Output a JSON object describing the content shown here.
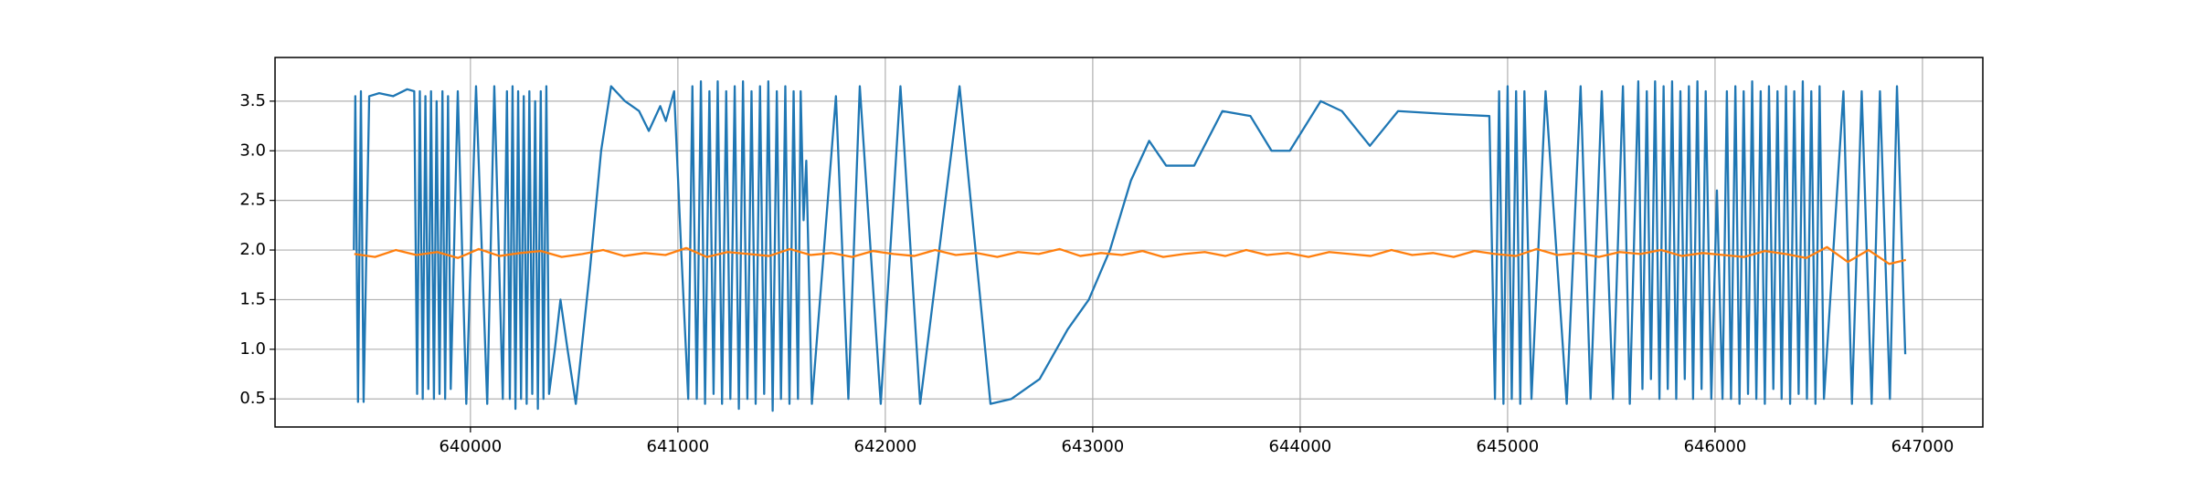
{
  "chart_data": {
    "type": "line",
    "xlim": [
      639058,
      647291
    ],
    "ylim": [
      0.217,
      3.94
    ],
    "xticks": [
      640000,
      641000,
      642000,
      643000,
      644000,
      645000,
      646000,
      647000
    ],
    "yticks": [
      0.5,
      {
        "value": 1.0,
        "label": "1.0"
      },
      1.5,
      {
        "value": 2.0,
        "label": "2.0"
      },
      2.5,
      {
        "value": 3.0,
        "label": "3.0"
      },
      3.5
    ],
    "grid": true,
    "series": [
      {
        "color": "#1f77b4",
        "x": [
          639438,
          639445,
          639458,
          639472,
          639485,
          639512,
          639560,
          639627,
          639695,
          639729,
          639743,
          639756,
          639770,
          639783,
          639797,
          639810,
          639824,
          639837,
          639851,
          639865,
          639878,
          639892,
          639905,
          639939,
          639980,
          640027,
          640081,
          640115,
          640156,
          640176,
          640190,
          640203,
          640217,
          640230,
          640244,
          640257,
          640271,
          640284,
          640298,
          640312,
          640325,
          640339,
          640352,
          640366,
          640379,
          640407,
          640434,
          640468,
          640508,
          640576,
          640630,
          640678,
          640745,
          640813,
          640860,
          640915,
          640942,
          640982,
          641016,
          641050,
          641070,
          641091,
          641111,
          641131,
          641152,
          641172,
          641192,
          641213,
          641233,
          641253,
          641274,
          641294,
          641314,
          641335,
          641355,
          641375,
          641396,
          641416,
          641436,
          641457,
          641477,
          641497,
          641518,
          641538,
          641558,
          641579,
          641592,
          641606,
          641619,
          641646,
          641762,
          641822,
          641877,
          641978,
          642073,
          642168,
          642358,
          642507,
          642608,
          642744,
          642879,
          642981,
          643083,
          643184,
          643272,
          643354,
          643489,
          643625,
          643760,
          643862,
          643950,
          644099,
          644201,
          644336,
          644472,
          644709,
          644912,
          644939,
          644959,
          644980,
          645000,
          645020,
          645041,
          645061,
          645081,
          645115,
          645183,
          645285,
          645352,
          645400,
          645454,
          645508,
          645556,
          645589,
          645630,
          645650,
          645671,
          645691,
          645711,
          645732,
          645752,
          645772,
          645793,
          645813,
          645833,
          645854,
          645874,
          645894,
          645915,
          645935,
          645955,
          645982,
          646009,
          646036,
          646057,
          646077,
          646098,
          646118,
          646138,
          646159,
          646179,
          646199,
          646220,
          646240,
          646260,
          646281,
          646301,
          646321,
          646342,
          646362,
          646382,
          646403,
          646423,
          646443,
          646464,
          646484,
          646504,
          646525,
          646619,
          646660,
          646707,
          646755,
          646795,
          646843,
          646877,
          646917
        ],
        "values": [
          2.0,
          3.55,
          0.47,
          3.6,
          0.47,
          3.55,
          3.58,
          3.55,
          3.62,
          3.6,
          0.55,
          3.6,
          0.5,
          3.55,
          0.6,
          3.6,
          0.5,
          3.5,
          0.55,
          3.6,
          0.5,
          3.55,
          0.6,
          3.6,
          0.45,
          3.65,
          0.45,
          3.65,
          0.5,
          3.6,
          0.5,
          3.65,
          0.4,
          3.6,
          0.5,
          3.55,
          0.45,
          3.6,
          0.55,
          3.5,
          0.4,
          3.6,
          0.5,
          3.65,
          0.55,
          1.0,
          1.5,
          1.0,
          0.45,
          1.8,
          3.0,
          3.65,
          3.5,
          3.4,
          3.2,
          3.45,
          3.3,
          3.6,
          2.0,
          0.5,
          3.65,
          0.5,
          3.7,
          0.45,
          3.6,
          0.55,
          3.7,
          0.45,
          3.6,
          0.5,
          3.65,
          0.4,
          3.7,
          0.5,
          3.6,
          0.45,
          3.65,
          0.55,
          3.7,
          0.38,
          3.6,
          0.5,
          3.65,
          0.45,
          3.6,
          0.5,
          3.6,
          2.3,
          2.9,
          0.45,
          3.55,
          0.5,
          3.65,
          0.45,
          3.65,
          0.45,
          3.65,
          0.45,
          0.5,
          0.7,
          1.2,
          1.5,
          2.0,
          2.7,
          3.1,
          2.85,
          2.85,
          3.4,
          3.35,
          3.0,
          3.0,
          3.5,
          3.4,
          3.05,
          3.4,
          3.37,
          3.35,
          0.5,
          3.6,
          0.45,
          3.65,
          0.5,
          3.6,
          0.45,
          3.6,
          0.5,
          3.6,
          0.45,
          3.65,
          0.5,
          3.6,
          0.5,
          3.65,
          0.45,
          3.7,
          0.6,
          3.6,
          0.7,
          3.7,
          0.5,
          3.65,
          0.6,
          3.7,
          0.5,
          3.6,
          0.7,
          3.65,
          0.5,
          3.7,
          0.6,
          3.6,
          0.5,
          2.6,
          0.5,
          3.6,
          0.5,
          3.65,
          0.45,
          3.6,
          0.55,
          3.7,
          0.5,
          3.6,
          0.45,
          3.65,
          0.6,
          3.6,
          0.5,
          3.65,
          0.45,
          3.6,
          0.55,
          3.7,
          0.5,
          3.6,
          0.45,
          3.65,
          0.5,
          3.6,
          0.45,
          3.6,
          0.45,
          3.6,
          0.5,
          3.65,
          0.95
        ]
      },
      {
        "color": "#ff7f0e",
        "x": [
          639440,
          639540,
          639640,
          639740,
          639840,
          639940,
          640040,
          640140,
          640240,
          640340,
          640440,
          640540,
          640640,
          640740,
          640840,
          640940,
          641040,
          641140,
          641240,
          641340,
          641440,
          641540,
          641640,
          641740,
          641840,
          641940,
          642040,
          642140,
          642240,
          642340,
          642440,
          642540,
          642640,
          642740,
          642840,
          642940,
          643040,
          643140,
          643240,
          643340,
          643440,
          643540,
          643640,
          643740,
          643840,
          643940,
          644040,
          644140,
          644240,
          644340,
          644440,
          644540,
          644640,
          644740,
          644840,
          644940,
          645040,
          645140,
          645240,
          645340,
          645440,
          645540,
          645640,
          645740,
          645840,
          645940,
          646040,
          646140,
          646240,
          646340,
          646440,
          646540,
          646640,
          646740,
          646840,
          646920
        ],
        "values": [
          1.96,
          1.93,
          2.0,
          1.95,
          1.98,
          1.92,
          2.01,
          1.94,
          1.97,
          1.99,
          1.93,
          1.96,
          2.0,
          1.94,
          1.97,
          1.95,
          2.02,
          1.93,
          1.98,
          1.96,
          1.94,
          2.01,
          1.95,
          1.97,
          1.93,
          1.99,
          1.96,
          1.94,
          2.0,
          1.95,
          1.97,
          1.93,
          1.98,
          1.96,
          2.01,
          1.94,
          1.97,
          1.95,
          1.99,
          1.93,
          1.96,
          1.98,
          1.94,
          2.0,
          1.95,
          1.97,
          1.93,
          1.98,
          1.96,
          1.94,
          2.0,
          1.95,
          1.97,
          1.93,
          1.99,
          1.96,
          1.94,
          2.01,
          1.95,
          1.97,
          1.93,
          1.98,
          1.96,
          2.0,
          1.94,
          1.97,
          1.95,
          1.93,
          1.99,
          1.96,
          1.92,
          2.03,
          1.88,
          2.0,
          1.86,
          1.9
        ]
      }
    ]
  }
}
